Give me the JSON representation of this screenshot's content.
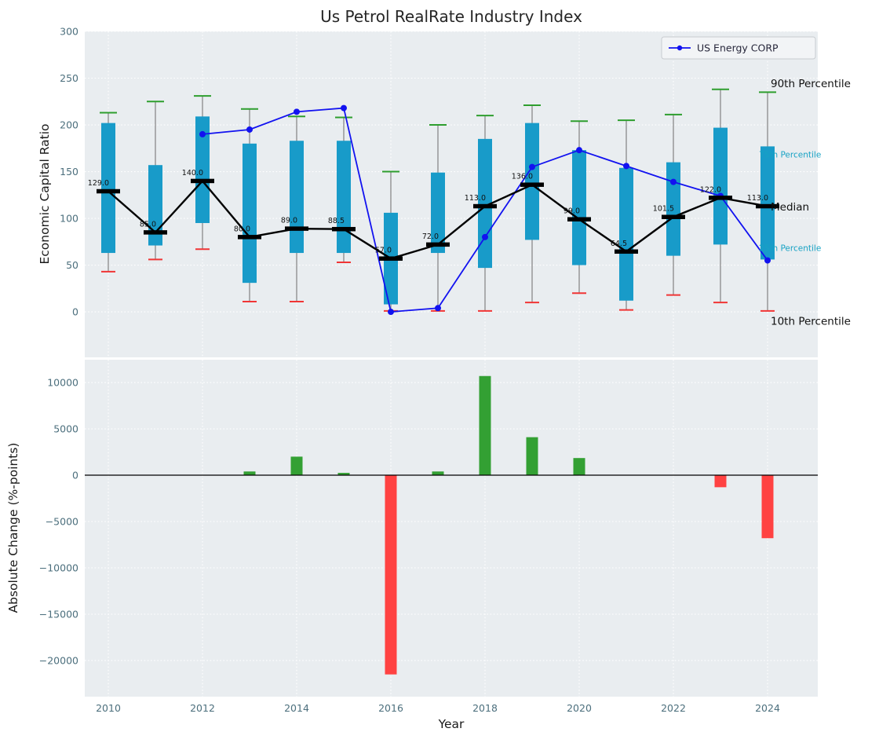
{
  "title": "Us Petrol RealRate Industry Index",
  "colors": {
    "axes_bg": "#e9edf0",
    "grid": "#ffffff",
    "box_fill": "#189bc9",
    "whisker": "#8a8a8a",
    "cap_top": "#2e9e2e",
    "cap_bottom": "#f03535",
    "median": "#000000",
    "company_line": "#1212f0",
    "bar_up": "#33a033",
    "bar_down": "#ff4242",
    "annotation_cyan": "#17a2c4",
    "zero_line": "#000000",
    "legend_bg": "#f2f4f6",
    "legend_border": "#c8ccd0"
  },
  "chart_data": [
    {
      "type": "boxplot+line",
      "title": "Us Petrol RealRate Industry Index",
      "ylabel": "Economic Capital Ratio",
      "ylim": [
        -48.7,
        300
      ],
      "yticks": [
        0,
        50,
        100,
        150,
        200,
        250,
        300
      ],
      "grid": true,
      "years": [
        2010,
        2011,
        2012,
        2013,
        2014,
        2015,
        2016,
        2017,
        2018,
        2019,
        2020,
        2021,
        2022,
        2023,
        2024
      ],
      "p90": [
        213,
        225,
        231,
        217,
        209,
        208,
        150,
        200,
        210,
        221,
        204,
        205,
        211,
        238,
        235
      ],
      "p75": [
        202,
        157,
        209,
        180,
        183,
        183,
        106,
        149,
        185,
        202,
        173,
        154,
        160,
        197,
        177
      ],
      "median": [
        129.0,
        85.0,
        140.0,
        80.0,
        89.0,
        88.5,
        57.0,
        72.0,
        113.0,
        136.0,
        99.0,
        64.5,
        101.5,
        122.0,
        113.0
      ],
      "p25": [
        63,
        71,
        95,
        31,
        63,
        63,
        8,
        63,
        47,
        77,
        50,
        12,
        60,
        72,
        56
      ],
      "p10": [
        43,
        56,
        67,
        11,
        11,
        53,
        1,
        1,
        1,
        10,
        20,
        2,
        18,
        10,
        1
      ],
      "median_labels": [
        "129.0",
        "85.0",
        "140.0",
        "80.0",
        "89.0",
        "88.5",
        "57.0",
        "72.0",
        "113.0",
        "136.0",
        "99.0",
        "64.5",
        "101.5",
        "122.0",
        "113.0"
      ],
      "company_series": {
        "name": "US Energy CORP",
        "years": [
          2012,
          2013,
          2014,
          2015,
          2016,
          2017,
          2018,
          2019,
          2020,
          2021,
          2022,
          2023,
          2024
        ],
        "values": [
          190,
          195,
          214,
          218,
          0,
          4,
          80,
          155,
          173,
          156,
          139,
          124,
          55
        ]
      },
      "annotations": [
        {
          "label": "90th Percentile",
          "value": 244,
          "style": "dark"
        },
        {
          "label": "75th Percentile",
          "value": 168,
          "style": "cyan"
        },
        {
          "label": "Median",
          "value": 112,
          "style": "dark"
        },
        {
          "label": "25th Percentile",
          "value": 68,
          "style": "cyan"
        },
        {
          "label": "10th Percentile",
          "value": -10,
          "style": "dark"
        }
      ],
      "legend": {
        "label": "US Energy CORP",
        "position": "upper right"
      }
    },
    {
      "type": "bar",
      "ylabel": "Absolute Change (%-points)",
      "xlabel": "Year",
      "ylim": [
        -23900,
        12460
      ],
      "yticks": [
        10000,
        5000,
        0,
        -5000,
        -10000,
        -15000,
        -20000
      ],
      "xticks": [
        2010,
        2012,
        2014,
        2016,
        2018,
        2020,
        2022,
        2024
      ],
      "grid": true,
      "years": [
        2010,
        2011,
        2012,
        2013,
        2014,
        2015,
        2016,
        2017,
        2018,
        2019,
        2020,
        2021,
        2022,
        2023,
        2024
      ],
      "values": [
        0,
        0,
        0,
        400,
        2000,
        250,
        -21500,
        400,
        10700,
        4100,
        1850,
        0,
        0,
        -1300,
        -6800
      ]
    }
  ]
}
